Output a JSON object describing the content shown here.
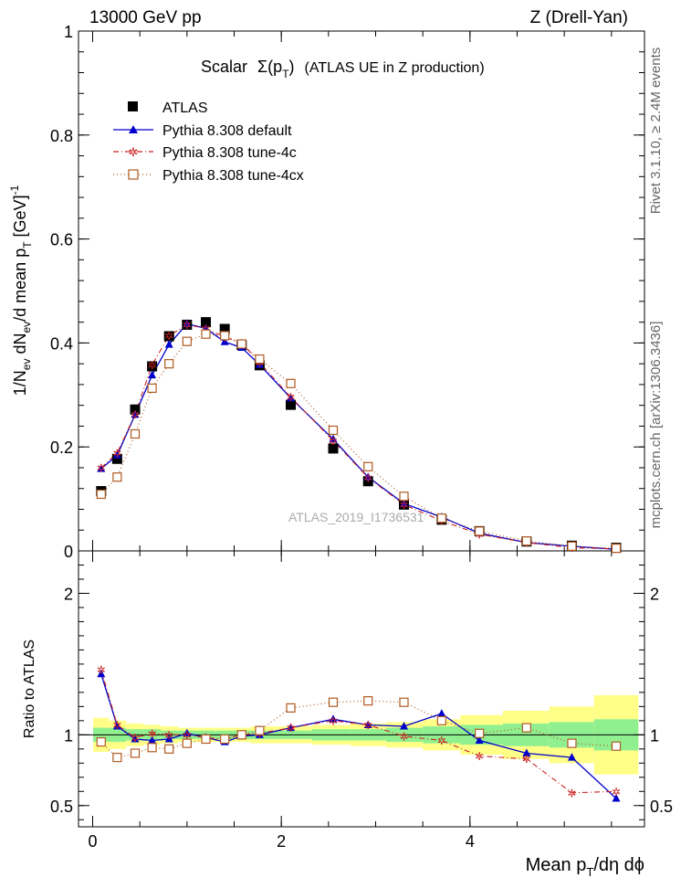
{
  "header": {
    "left": "13000 GeV pp",
    "right": "Z (Drell-Yan)"
  },
  "plot_title": {
    "text": "Scalar",
    "sym": "Σ(p",
    "sub": "T",
    "close": ")",
    "rest": "(ATLAS UE in Z production)"
  },
  "y_title_top": {
    "a": "1/N",
    "b": "ev",
    "c": " dN",
    "d": "ev",
    "e": "/d mean p",
    "f": "T",
    "g": " [GeV]",
    "h": "-1"
  },
  "y_title_bottom": "Ratio to ATLAS",
  "x_title": {
    "a": "Mean p",
    "b": "T",
    "c": "/dη dϕ"
  },
  "side_top": "Rivet 3.1.10, ≥ 2.4M events",
  "side_bottom": "mcplots.cern.ch [arXiv:1306.3436]",
  "watermark": "ATLAS_2019_I1736531",
  "legend": [
    {
      "key": "atlas",
      "label": "ATLAS"
    },
    {
      "key": "def",
      "label": "Pythia 8.308 default"
    },
    {
      "key": "t4c",
      "label": "Pythia 8.308 tune-4c"
    },
    {
      "key": "t4cx",
      "label": "Pythia 8.308 tune-4cx"
    }
  ],
  "colors": {
    "def": "#0000cc",
    "t4c": "#cc2222",
    "t4cx": "#b05a20",
    "band_inner": "#90f090",
    "band_outer": "#ffff88"
  },
  "chart_data": {
    "type": "scatter",
    "x": [
      0.09,
      0.26,
      0.45,
      0.63,
      0.81,
      1.0,
      1.2,
      1.4,
      1.58,
      1.77,
      2.1,
      2.55,
      2.92,
      3.3,
      3.7,
      4.1,
      4.6,
      5.08,
      5.55
    ],
    "xlim": [
      -0.15,
      5.85
    ],
    "xticks": [
      "0",
      "2",
      "4"
    ],
    "top": {
      "ylim": [
        0,
        1
      ],
      "yticks": [
        "0",
        "0.2",
        "0.4",
        "0.6",
        "0.8",
        "1"
      ],
      "series": [
        {
          "name": "ATLAS",
          "values": [
            0.115,
            0.177,
            0.272,
            0.355,
            0.413,
            0.435,
            0.44,
            0.427,
            0.396,
            0.357,
            0.281,
            0.197,
            0.134,
            0.089,
            0.06,
            0.038,
            0.018,
            0.01,
            0.006
          ]
        },
        {
          "name": "Pythia 8.308 default",
          "values": [
            0.158,
            0.184,
            0.262,
            0.338,
            0.397,
            0.437,
            0.428,
            0.402,
            0.391,
            0.358,
            0.294,
            0.215,
            0.142,
            0.091,
            0.065,
            0.034,
            0.016,
            0.009,
            0.003
          ]
        },
        {
          "name": "Pythia 8.308 tune-4c",
          "values": [
            0.16,
            0.188,
            0.263,
            0.358,
            0.414,
            0.435,
            0.428,
            0.411,
            0.4,
            0.362,
            0.296,
            0.212,
            0.141,
            0.089,
            0.058,
            0.032,
            0.016,
            0.006,
            0.004
          ]
        },
        {
          "name": "Pythia 8.308 tune-4cx",
          "values": [
            0.109,
            0.142,
            0.225,
            0.313,
            0.36,
            0.403,
            0.417,
            0.414,
            0.398,
            0.369,
            0.322,
            0.232,
            0.162,
            0.105,
            0.063,
            0.038,
            0.019,
            0.009,
            0.005
          ]
        }
      ]
    },
    "bottom": {
      "ylim": [
        0.35,
        2.3
      ],
      "yticks": [
        "0.5",
        "1",
        "2"
      ],
      "band_inner": [
        0.05,
        0.05,
        0.04,
        0.04,
        0.03,
        0.03,
        0.03,
        0.03,
        0.03,
        0.03,
        0.03,
        0.04,
        0.04,
        0.05,
        0.06,
        0.07,
        0.08,
        0.09,
        0.11
      ],
      "band_outer": [
        0.12,
        0.1,
        0.08,
        0.07,
        0.06,
        0.05,
        0.05,
        0.05,
        0.05,
        0.06,
        0.06,
        0.07,
        0.08,
        0.09,
        0.11,
        0.14,
        0.17,
        0.2,
        0.28
      ],
      "series": [
        {
          "name": "Pythia 8.308 default",
          "values": [
            1.43,
            1.06,
            0.97,
            0.96,
            0.97,
            1.01,
            0.98,
            0.95,
            0.99,
            1.0,
            1.05,
            1.11,
            1.07,
            1.06,
            1.15,
            0.96,
            0.87,
            0.84,
            0.55
          ]
        },
        {
          "name": "Pythia 8.308 tune-4c",
          "values": [
            1.46,
            1.07,
            0.98,
            1.01,
            1.0,
            1.0,
            0.98,
            0.97,
            1.0,
            1.01,
            1.05,
            1.1,
            1.07,
            0.99,
            0.96,
            0.85,
            0.83,
            0.59,
            0.6
          ]
        },
        {
          "name": "Pythia 8.308 tune-4cx",
          "values": [
            0.95,
            0.84,
            0.87,
            0.91,
            0.9,
            0.94,
            0.97,
            0.97,
            1.0,
            1.03,
            1.19,
            1.23,
            1.24,
            1.23,
            1.1,
            1.01,
            1.05,
            0.94,
            0.92
          ]
        }
      ]
    }
  }
}
